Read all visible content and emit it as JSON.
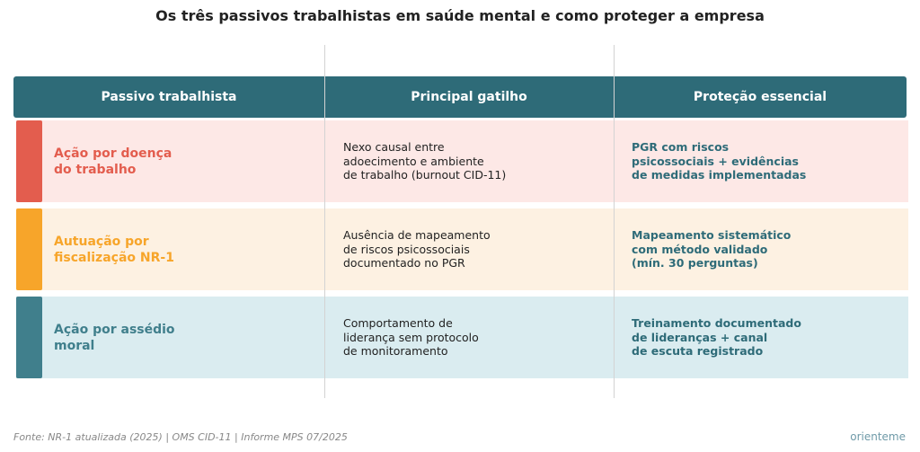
{
  "title": "Os três passivos trabalhistas em saúde mental e como proteger a empresa",
  "colors": {
    "header_bg": "#2e6b78",
    "divider": "#d3d3d3"
  },
  "columns": [
    "Passivo trabalhista",
    "Principal gatilho",
    "Proteção essencial"
  ],
  "rows": [
    {
      "liability": "Ação por doença\ndo trabalho",
      "trigger": "Nexo causal entre\nadoecimento e ambiente\nde trabalho (burnout CID-11)",
      "protection": "PGR com riscos\npsicossociais + evidências\nde medidas implementadas",
      "accent_color": "#e35d4e",
      "bg_color": "#fde8e6"
    },
    {
      "liability": "Autuação por\nfiscalização NR-1",
      "trigger": "Ausência de mapeamento\nde riscos psicossociais\ndocumentado no PGR",
      "protection": "Mapeamento sistemático\ncom método validado\n(mín. 30 perguntas)",
      "accent_color": "#f7a52a",
      "bg_color": "#fdf1e2"
    },
    {
      "liability": "Ação por assédio\nmoral",
      "trigger": "Comportamento de\nliderança sem protocolo\nde monitoramento",
      "protection": "Treinamento documentado\nde lideranças + canal\nde escuta registrado",
      "accent_color": "#407f8c",
      "bg_color": "#daecf0"
    }
  ],
  "protection_text_color": "#2e6b78",
  "footer": {
    "source": "Fonte: NR-1 atualizada (2025) | OMS CID-11 | Informe MPS 07/2025",
    "brand": "orienteme"
  }
}
